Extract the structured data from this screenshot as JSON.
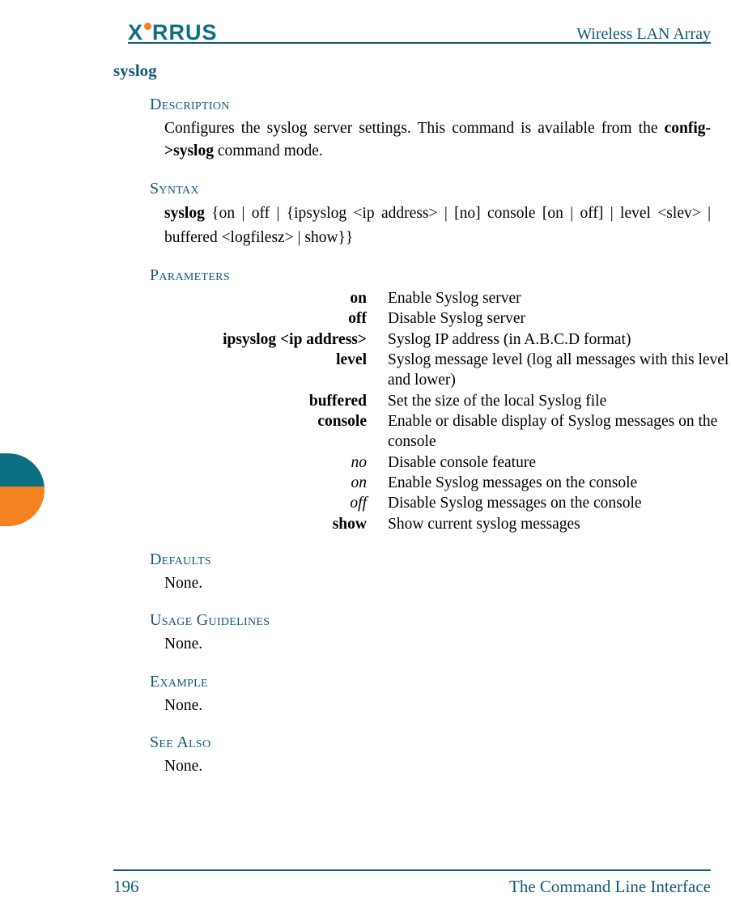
{
  "colors": {
    "brand": "#0d6f82",
    "heading": "#135a78",
    "orange": "#f58220",
    "text": "#000000",
    "background": "#ffffff",
    "rule": "#135a78"
  },
  "header": {
    "logo_text_pre": "X",
    "logo_text_post": "RRUS",
    "doc_title": "Wireless LAN Array"
  },
  "side_tab": {
    "stripes": [
      {
        "color": "#0d6f82",
        "height_pct": 45
      },
      {
        "color": "#f58220",
        "height_pct": 55
      }
    ]
  },
  "command": {
    "name": "syslog"
  },
  "sections": {
    "description": {
      "heading": "Description",
      "text_pre": "Configures the  syslog server settings. This command is available from the ",
      "bold": "config->syslog",
      "text_post": " command mode."
    },
    "syntax": {
      "heading": "Syntax",
      "bold_cmd": "syslog",
      "rest": " {on | off | {ipsyslog <ip address> | [no] console [on | off] | level <slev> | buffered <logfilesz> | show}}"
    },
    "parameters": {
      "heading": "Parameters",
      "rows": [
        {
          "name": "on",
          "italic": false,
          "desc": "Enable Syslog server"
        },
        {
          "name": "off",
          "italic": false,
          "desc": "Disable Syslog server"
        },
        {
          "name": "ipsyslog <ip address>",
          "italic": false,
          "desc": "Syslog IP address (in A.B.C.D format)"
        },
        {
          "name": "level",
          "italic": false,
          "desc": "Syslog message level (log all messages with this level and lower)"
        },
        {
          "name": "buffered",
          "italic": false,
          "desc": "Set the size of the local Syslog file"
        },
        {
          "name": "console",
          "italic": false,
          "desc": "Enable or disable display of Syslog messages on the console"
        },
        {
          "name": "no",
          "italic": true,
          "desc": "Disable console feature"
        },
        {
          "name": "on",
          "italic": true,
          "desc": "Enable Syslog messages on the console"
        },
        {
          "name": "off",
          "italic": true,
          "desc": "Disable Syslog messages on the console"
        },
        {
          "name": "show",
          "italic": false,
          "desc": "Show current syslog messages"
        }
      ]
    },
    "defaults": {
      "heading": "Defaults",
      "text": "None."
    },
    "usage": {
      "heading": "Usage Guidelines",
      "text": "None."
    },
    "example": {
      "heading": "Example",
      "text": "None."
    },
    "see_also": {
      "heading": "See Also",
      "text": "None."
    }
  },
  "footer": {
    "page_number": "196",
    "chapter_title": "The Command Line Interface"
  }
}
